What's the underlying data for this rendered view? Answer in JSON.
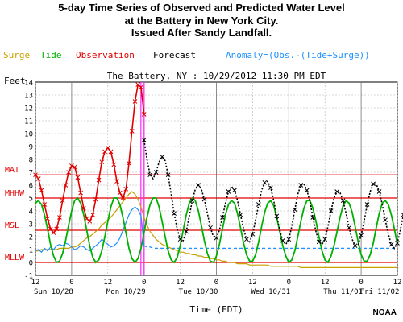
{
  "header": {
    "title_lines": [
      "5-day Time Series of Observed and Predicted Water Level",
      "at the Battery in New York City.",
      "Issued After Sandy Landfall."
    ]
  },
  "legend": [
    {
      "name": "Surge",
      "color": "#c8a000"
    },
    {
      "name": "Tide",
      "color": "#00b000"
    },
    {
      "name": "Observation",
      "color": "#e00000"
    },
    {
      "name": "Forecast",
      "color": "#000000"
    },
    {
      "name": "Anomaly=(Obs.-(Tide+Surge))",
      "color": "#1e90ff"
    }
  ],
  "credit": "NOAA",
  "chart_data": {
    "type": "line",
    "title": "The Battery, NY : 10/29/2012 11:30 PM EDT",
    "ylabel": "Feet",
    "xlabel": "Time (EDT)",
    "xlim_hours": [
      0,
      120
    ],
    "ylim": [
      -1,
      14
    ],
    "y_ticks": [
      -1,
      0,
      1,
      2,
      3,
      4,
      5,
      6,
      7,
      8,
      9,
      10,
      11,
      12,
      13,
      14
    ],
    "x_hour_ticks": [
      {
        "t": 0,
        "label": "12"
      },
      {
        "t": 12,
        "label": "0"
      },
      {
        "t": 24,
        "label": "12"
      },
      {
        "t": 36,
        "label": "0"
      },
      {
        "t": 48,
        "label": "12"
      },
      {
        "t": 60,
        "label": "0"
      },
      {
        "t": 72,
        "label": "12"
      },
      {
        "t": 84,
        "label": "0"
      },
      {
        "t": 96,
        "label": "12"
      },
      {
        "t": 108,
        "label": "0"
      },
      {
        "t": 120,
        "label": "12"
      }
    ],
    "day_labels": [
      {
        "t": 6,
        "label": "Sun 10/28"
      },
      {
        "t": 30,
        "label": "Mon 10/29"
      },
      {
        "t": 54,
        "label": "Tue 10/30"
      },
      {
        "t": 78,
        "label": "Wed 10/31"
      },
      {
        "t": 102,
        "label": "Thu 11/01"
      },
      {
        "t": 124,
        "label": "Fri 11/02"
      }
    ],
    "datum_lines": [
      {
        "label": "MAT",
        "value": 6.8,
        "color": "#e00000"
      },
      {
        "label": "MHHW",
        "value": 5.0,
        "color": "#e00000"
      },
      {
        "label": "MSL",
        "value": 2.5,
        "color": "#e00000"
      },
      {
        "label": "MLLW",
        "value": 0.0,
        "color": "#e00000"
      }
    ],
    "now_hour": 35.5,
    "grid": true,
    "series": [
      {
        "name": "Tide",
        "color": "#00b000",
        "hour_step": 1,
        "values": [
          4.6,
          4.8,
          4.5,
          3.7,
          2.6,
          1.4,
          0.5,
          0.0,
          0.1,
          0.7,
          1.7,
          2.9,
          4.0,
          4.8,
          5.0,
          4.6,
          3.7,
          2.5,
          1.3,
          0.4,
          0.0,
          0.2,
          0.9,
          2.0,
          3.2,
          4.3,
          5.0,
          5.0,
          4.5,
          3.5,
          2.3,
          1.1,
          0.3,
          0.0,
          0.3,
          1.1,
          2.3,
          3.5,
          4.5,
          5.0,
          5.0,
          4.3,
          3.2,
          2.0,
          0.9,
          0.2,
          0.0,
          0.4,
          1.3,
          2.5,
          3.7,
          4.6,
          5.0,
          4.8,
          4.0,
          2.9,
          1.7,
          0.7,
          0.1,
          0.0,
          0.5,
          1.4,
          2.6,
          3.7,
          4.5,
          4.8,
          4.6,
          3.8,
          2.7,
          1.5,
          0.6,
          0.1,
          0.1,
          0.6,
          1.6,
          2.8,
          3.9,
          4.6,
          4.8,
          4.4,
          3.5,
          2.4,
          1.3,
          0.5,
          0.0,
          0.2,
          0.9,
          2.0,
          3.2,
          4.2,
          4.8,
          4.8,
          4.2,
          3.2,
          2.0,
          0.9,
          0.2,
          0.0,
          0.5,
          1.3,
          2.4,
          3.5,
          4.4,
          4.8,
          4.6,
          3.9,
          2.8,
          1.6,
          0.6,
          0.1,
          0.1,
          0.6,
          1.5,
          2.7,
          3.8,
          4.6,
          4.8,
          4.5,
          3.7,
          2.6,
          1.4
        ]
      },
      {
        "name": "Surge",
        "color": "#c8a000",
        "hour_step": 1,
        "values": [
          0.9,
          0.9,
          1.0,
          1.0,
          1.0,
          1.0,
          1.0,
          1.0,
          1.1,
          1.1,
          1.1,
          1.1,
          1.2,
          1.2,
          1.3,
          1.5,
          1.7,
          1.9,
          2.0,
          2.2,
          2.4,
          2.6,
          2.9,
          3.1,
          3.3,
          3.5,
          3.8,
          4.1,
          4.4,
          4.7,
          5.0,
          5.3,
          5.5,
          5.3,
          4.9,
          4.3,
          3.5,
          2.9,
          2.4,
          2.1,
          1.8,
          1.6,
          1.4,
          1.3,
          1.2,
          1.1,
          1.0,
          0.9,
          0.8,
          0.8,
          0.7,
          0.7,
          0.6,
          0.6,
          0.5,
          0.5,
          0.4,
          0.4,
          0.3,
          0.3,
          0.2,
          0.2,
          0.1,
          0.1,
          0.0,
          0.0,
          0.0,
          -0.1,
          -0.1,
          -0.1,
          -0.1,
          -0.2,
          -0.2,
          -0.2,
          -0.2,
          -0.2,
          -0.2,
          -0.2,
          -0.3,
          -0.3,
          -0.3,
          -0.3,
          -0.3,
          -0.3,
          -0.3,
          -0.3,
          -0.3,
          -0.3,
          -0.4,
          -0.4,
          -0.4,
          -0.4,
          -0.4,
          -0.4,
          -0.4,
          -0.4,
          -0.4,
          -0.4,
          -0.4,
          -0.4,
          -0.4,
          -0.4,
          -0.4,
          -0.4,
          -0.4,
          -0.4,
          -0.4,
          -0.4,
          -0.4,
          -0.4,
          -0.4,
          -0.4,
          -0.4,
          -0.4,
          -0.4,
          -0.4,
          -0.4,
          -0.4,
          -0.4,
          -0.4,
          -0.4
        ]
      },
      {
        "name": "Anomaly=(Obs.-(Tide+Surge))",
        "color": "#1e90ff",
        "hour_step": 1,
        "values": [
          0.9,
          1.0,
          0.8,
          1.1,
          0.9,
          1.2,
          1.0,
          1.3,
          1.4,
          1.3,
          1.5,
          1.4,
          1.2,
          1.0,
          1.1,
          1.3,
          1.2,
          1.0,
          0.9,
          1.1,
          1.3,
          1.5,
          1.8,
          1.6,
          1.4,
          1.2,
          1.3,
          1.5,
          1.9,
          2.5,
          3.1,
          3.7,
          4.1,
          4.3,
          4.1,
          3.6,
          1.3,
          1.2,
          1.2,
          1.1,
          1.1,
          1.1,
          1.1,
          1.1,
          1.1,
          1.1,
          1.1,
          1.1,
          1.1,
          1.1,
          1.1,
          1.1,
          1.1,
          1.1,
          1.1,
          1.1,
          1.1,
          1.1,
          1.1,
          1.1,
          1.1,
          1.1,
          1.1,
          1.1,
          1.1,
          1.1,
          1.1,
          1.1,
          1.1,
          1.1,
          1.1,
          1.1,
          1.1,
          1.1,
          1.1,
          1.1,
          1.1,
          1.1,
          1.1,
          1.1,
          1.1,
          1.1,
          1.1,
          1.1,
          1.1,
          1.1,
          1.1,
          1.1,
          1.1,
          1.1,
          1.1,
          1.1,
          1.1,
          1.1,
          1.1,
          1.1,
          1.1,
          1.1,
          1.1,
          1.1,
          1.1,
          1.1,
          1.1,
          1.1,
          1.1,
          1.1,
          1.1,
          1.1,
          1.1,
          1.1,
          1.1,
          1.1,
          1.1,
          1.1,
          1.1,
          1.1,
          1.1,
          1.1,
          1.1,
          1.1,
          1.1
        ]
      },
      {
        "name": "Observation",
        "color": "#e00000",
        "hour_step": 1,
        "values": [
          6.8,
          6.5,
          5.6,
          4.5,
          3.4,
          2.6,
          2.3,
          2.6,
          3.5,
          4.8,
          6.0,
          7.0,
          7.5,
          7.4,
          6.6,
          5.4,
          4.2,
          3.4,
          3.2,
          3.7,
          4.9,
          6.4,
          7.8,
          8.6,
          8.9,
          8.6,
          7.6,
          6.3,
          5.4,
          5.0,
          5.7,
          7.7,
          10.2,
          12.5,
          13.8,
          13.6,
          11.5
        ]
      },
      {
        "name": "Forecast",
        "color": "#000000",
        "hour_step": 1,
        "start_hour": 36,
        "values": [
          9.5,
          8.0,
          6.8,
          6.5,
          7.0,
          7.8,
          8.2,
          7.9,
          6.8,
          5.3,
          3.8,
          2.6,
          1.8,
          1.7,
          2.4,
          3.6,
          4.8,
          5.7,
          6.0,
          5.7,
          4.9,
          3.8,
          2.7,
          2.0,
          1.9,
          2.5,
          3.5,
          4.6,
          5.5,
          5.9,
          5.6,
          4.8,
          3.7,
          2.6,
          1.8,
          1.6,
          2.2,
          3.3,
          4.5,
          5.6,
          6.2,
          6.3,
          5.8,
          4.8,
          3.6,
          2.5,
          1.7,
          1.4,
          1.8,
          2.8,
          4.1,
          5.3,
          6.0,
          6.1,
          5.6,
          4.7,
          3.5,
          2.4,
          1.6,
          1.4,
          1.8,
          2.8,
          4.0,
          5.0,
          5.5,
          5.4,
          4.8,
          3.8,
          2.7,
          1.8,
          1.3,
          1.4,
          2.1,
          3.2,
          4.5,
          5.5,
          6.1,
          6.1,
          5.5,
          4.5,
          3.3,
          2.2,
          1.4,
          1.1,
          1.5,
          2.5,
          3.7,
          4.8,
          5.6,
          5.8,
          5.4,
          4.5
        ]
      }
    ]
  }
}
